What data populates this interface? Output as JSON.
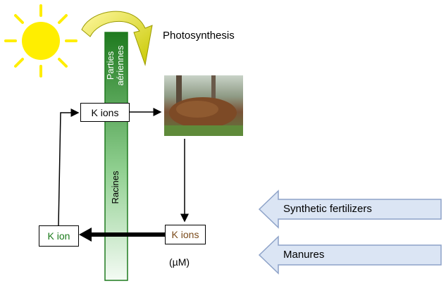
{
  "labels": {
    "photosynthesis": "Photosynthesis",
    "aerial_parts_1": "Parties",
    "aerial_parts_2": "aériennes",
    "roots": "Racines",
    "k_ions_top": "K ions",
    "k_ions_soil": "K ions",
    "k_ion_left": "K ion",
    "unit": "(µM)",
    "synthetic_fertilizers": "Synthetic fertilizers",
    "manures": "Manures"
  },
  "colors": {
    "sun": "#ffee00",
    "stem_dark": "#1f7a1f",
    "stem_light": "#eaf7ea",
    "arrow_fill": "#dbe5f4",
    "arrow_stroke": "#8da2c8",
    "k_ion_left_text": "#1a7a1a",
    "k_ions_soil_text": "#7a4a1a"
  },
  "icons": {
    "sun": "sun-icon",
    "curved_arrow": "curved-arrow-icon",
    "leaf_pile": "leaf-pile-photo"
  }
}
